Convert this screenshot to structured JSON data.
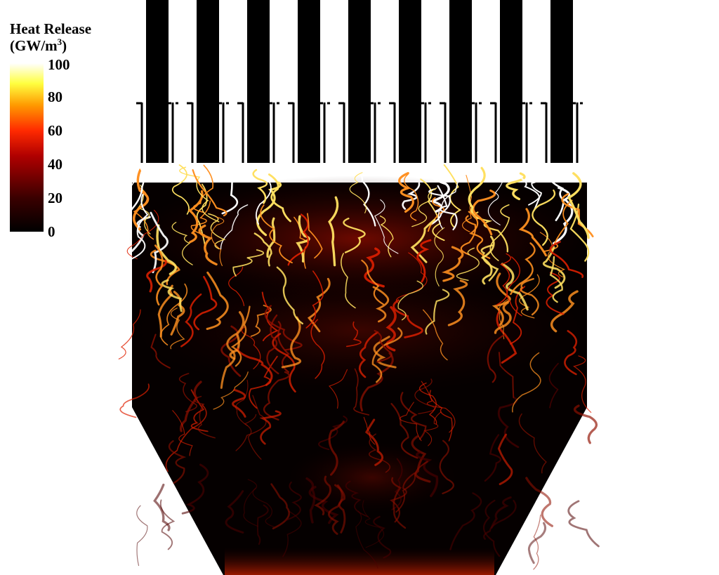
{
  "legend": {
    "title_line1": "Heat Release",
    "title_unit_open": "(GW/m",
    "title_unit_exp": "3",
    "title_unit_close": ")",
    "ticks": [
      100,
      80,
      60,
      40,
      20,
      0
    ]
  }
}
